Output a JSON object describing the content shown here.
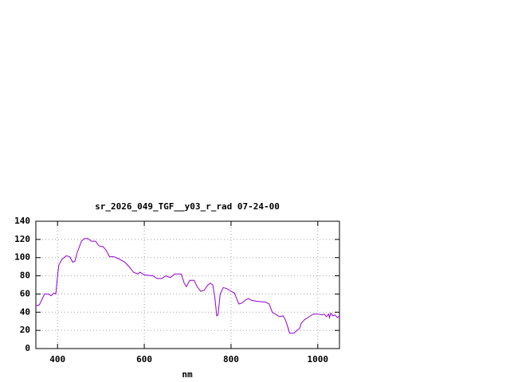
{
  "chart_data": {
    "type": "line",
    "title": "sr_2026_049_TGF__y03_r_rad 07-24-00",
    "x_label": "nm",
    "x": [
      350,
      358,
      365,
      370,
      380,
      385,
      392,
      396,
      400,
      403,
      410,
      420,
      428,
      435,
      440,
      445,
      455,
      462,
      470,
      478,
      488,
      495,
      505,
      512,
      520,
      530,
      540,
      555,
      565,
      575,
      585,
      590,
      600,
      620,
      630,
      640,
      650,
      660,
      670,
      680,
      685,
      692,
      697,
      705,
      715,
      722,
      730,
      738,
      745,
      752,
      758,
      763,
      767,
      770,
      775,
      782,
      790,
      800,
      808,
      812,
      818,
      825,
      832,
      840,
      848,
      860,
      880,
      888,
      895,
      905,
      912,
      920,
      925,
      930,
      935,
      945,
      952,
      958,
      962,
      970,
      980,
      990,
      1000,
      1010,
      1015,
      1020,
      1025,
      1027,
      1030,
      1035,
      1040,
      1045,
      1050
    ],
    "series": [
      {
        "color": "#9400d3",
        "values": [
          47,
          48,
          55,
          60,
          60,
          58,
          61,
          60,
          80,
          92,
          98,
          102,
          101,
          95,
          96,
          105,
          118,
          121,
          121,
          118,
          118,
          113,
          112,
          108,
          101,
          101,
          99,
          95,
          90,
          84,
          82,
          84,
          81,
          80,
          77,
          77,
          80,
          78,
          82,
          82,
          82,
          72,
          68,
          75,
          75,
          68,
          63,
          64,
          69,
          72,
          70,
          55,
          36,
          37,
          60,
          67,
          66,
          63,
          61,
          56,
          49,
          50,
          53,
          55,
          53,
          52,
          51,
          49,
          40,
          37,
          35,
          36,
          32,
          25,
          17,
          17,
          20,
          22,
          28,
          32,
          35,
          38,
          38,
          37,
          38,
          35,
          38,
          34,
          39,
          36,
          37,
          34,
          36
        ]
      }
    ],
    "xlim": [
      350,
      1050
    ],
    "xticks": [
      400,
      600,
      800,
      1000
    ],
    "ylim": [
      0,
      140
    ],
    "yticks": [
      0,
      20,
      40,
      60,
      80,
      100,
      120,
      140
    ],
    "grid": true
  }
}
